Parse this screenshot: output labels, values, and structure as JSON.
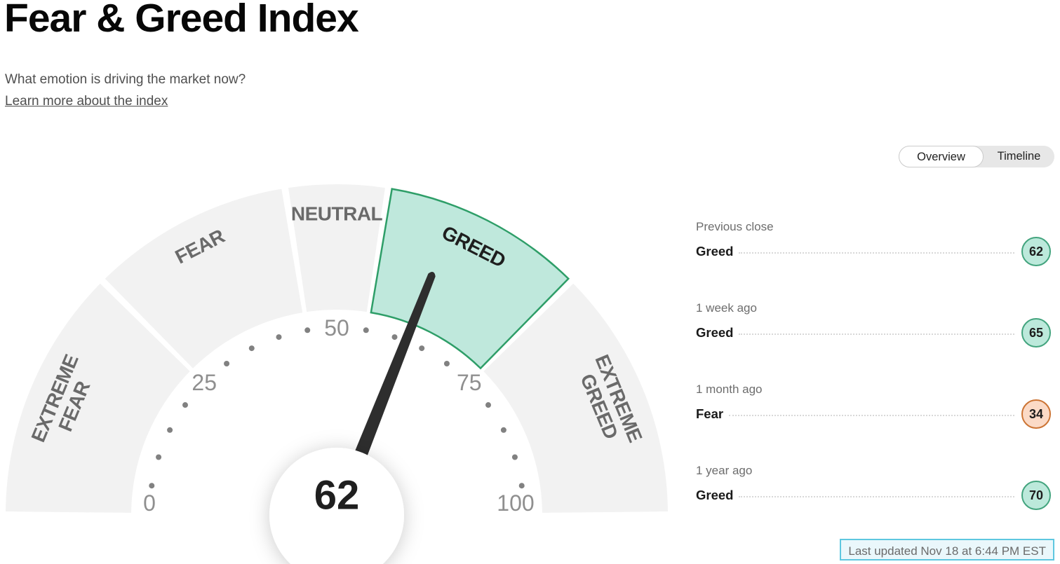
{
  "header": {
    "title": "Fear & Greed Index",
    "subtitle": "What emotion is driving the market now?",
    "learn_more": "Learn more about the index"
  },
  "view_toggle": {
    "options": [
      "Overview",
      "Timeline"
    ],
    "selected": "Overview"
  },
  "gauge": {
    "value": 62,
    "min": 0,
    "max": 100,
    "dot_step": 5,
    "tick_labels": [
      0,
      25,
      50,
      75,
      100
    ],
    "segments": [
      {
        "label": "EXTREME FEAR",
        "lines": [
          "EXTREME",
          "FEAR"
        ],
        "from": 0,
        "to": 25,
        "highlighted": false
      },
      {
        "label": "FEAR",
        "lines": [
          "FEAR"
        ],
        "from": 25,
        "to": 45,
        "highlighted": false
      },
      {
        "label": "NEUTRAL",
        "lines": [
          "NEUTRAL"
        ],
        "from": 45,
        "to": 55,
        "highlighted": false
      },
      {
        "label": "GREED",
        "lines": [
          "GREED"
        ],
        "from": 55,
        "to": 75,
        "highlighted": true
      },
      {
        "label": "EXTREME GREED",
        "lines": [
          "EXTREME",
          "GREED"
        ],
        "from": 75,
        "to": 100,
        "highlighted": false
      }
    ]
  },
  "history": {
    "rows": [
      {
        "label": "Previous close",
        "sentiment": "Greed",
        "value": 62,
        "tone": "greed"
      },
      {
        "label": "1 week ago",
        "sentiment": "Greed",
        "value": 65,
        "tone": "greed"
      },
      {
        "label": "1 month ago",
        "sentiment": "Fear",
        "value": 34,
        "tone": "fear"
      },
      {
        "label": "1 year ago",
        "sentiment": "Greed",
        "value": 70,
        "tone": "greed"
      }
    ]
  },
  "footer": {
    "last_updated": "Last updated Nov 18 at 6:44 PM EST"
  },
  "colors": {
    "segment_fill": "#f2f2f2",
    "highlight_fill": "#bfe8dc",
    "highlight_stroke": "#2e9e68",
    "needle": "#2e2e2e",
    "dot": "#818181",
    "badge_greed_fill": "#bce9db",
    "badge_greed_border": "#43a47e",
    "badge_fear_fill": "#fbdac6",
    "badge_fear_border": "#cc7434",
    "updated_border": "#5ec7e0",
    "updated_bg": "#eaf7fb"
  },
  "chart_data": {
    "type": "gauge",
    "title": "Fear & Greed Index",
    "value": 62,
    "value_sentiment": "Greed",
    "range": [
      0,
      100
    ],
    "ticks": [
      0,
      25,
      50,
      75,
      100
    ],
    "segments": [
      {
        "label": "Extreme Fear",
        "from": 0,
        "to": 25
      },
      {
        "label": "Fear",
        "from": 25,
        "to": 45
      },
      {
        "label": "Neutral",
        "from": 45,
        "to": 55
      },
      {
        "label": "Greed",
        "from": 55,
        "to": 75,
        "highlighted": true
      },
      {
        "label": "Extreme Greed",
        "from": 75,
        "to": 100
      }
    ],
    "history": [
      {
        "label": "Previous close",
        "sentiment": "Greed",
        "value": 62
      },
      {
        "label": "1 week ago",
        "sentiment": "Greed",
        "value": 65
      },
      {
        "label": "1 month ago",
        "sentiment": "Fear",
        "value": 34
      },
      {
        "label": "1 year ago",
        "sentiment": "Greed",
        "value": 70
      }
    ]
  }
}
